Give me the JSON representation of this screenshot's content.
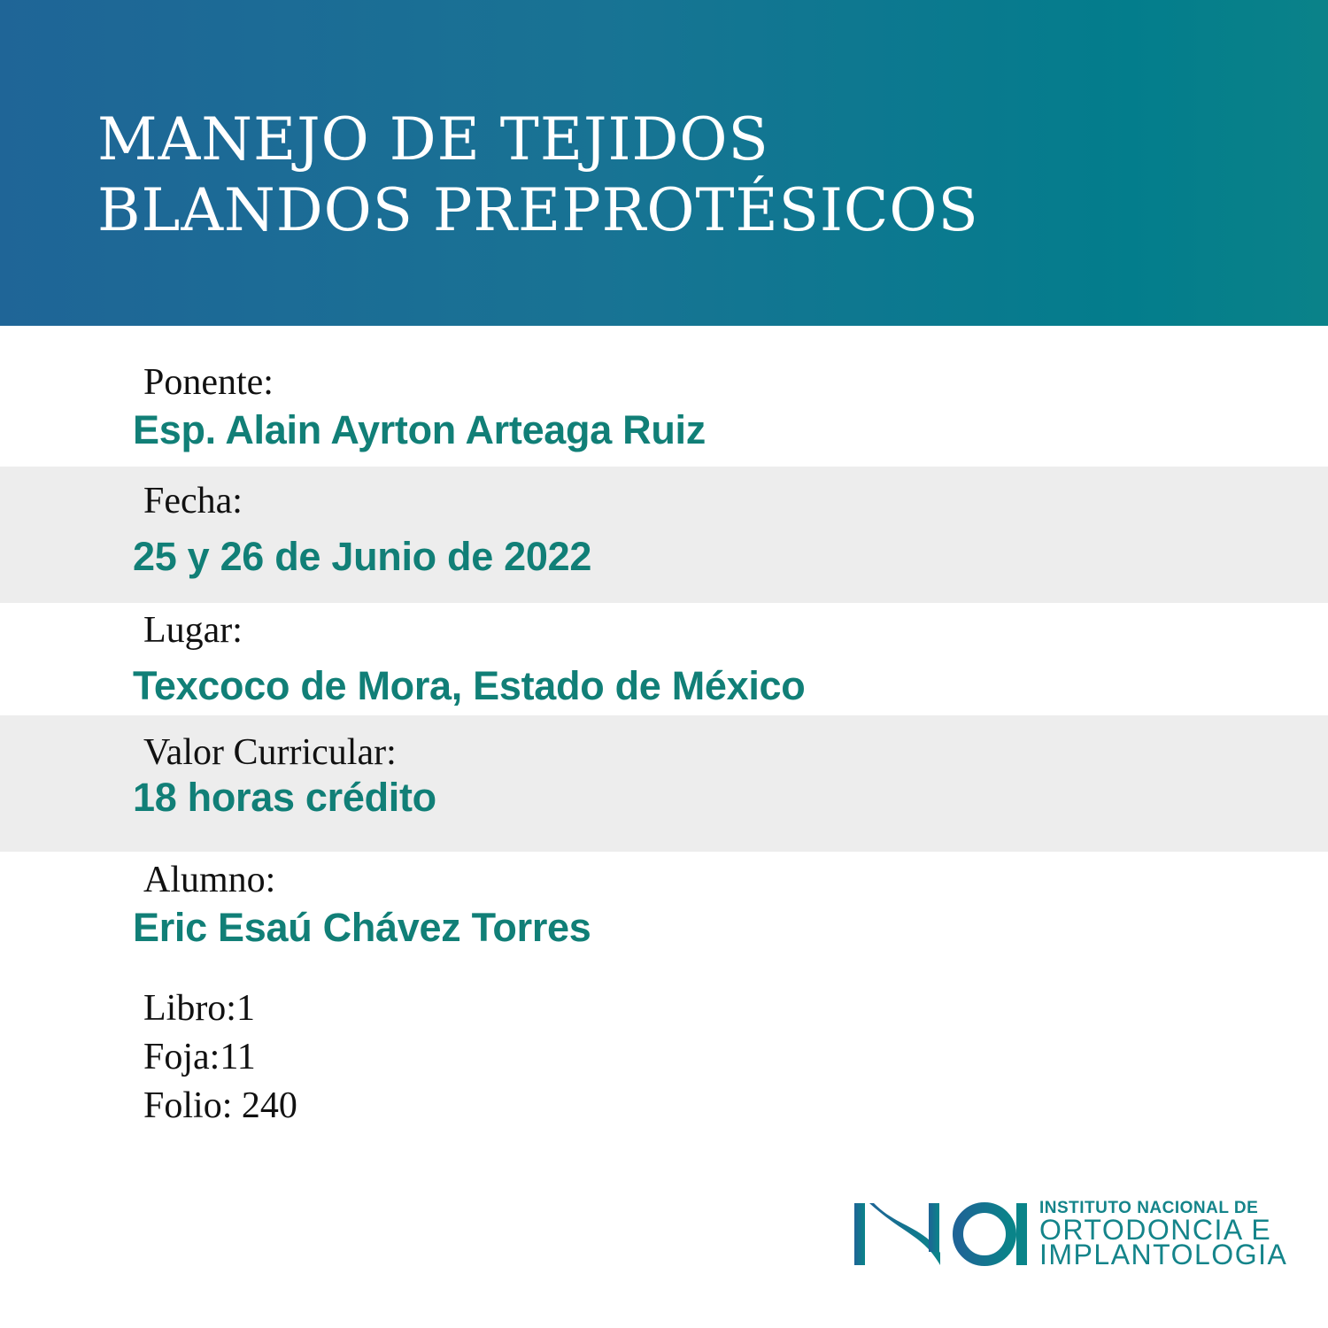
{
  "header": {
    "title_line1": "MANEJO DE TEJIDOS",
    "title_line2": "BLANDOS PREPROTÉSICOS",
    "gradient": [
      "#1f6597",
      "#0a8289"
    ]
  },
  "fields": [
    {
      "label": "Ponente:",
      "value": "Esp. Alain Ayrton Arteaga Ruiz"
    },
    {
      "label": "Fecha:",
      "value": "25 y 26 de Junio de 2022"
    },
    {
      "label": "Lugar:",
      "value": "Texcoco de Mora, Estado de México"
    },
    {
      "label": "Valor Curricular:",
      "value": "18 horas crédito"
    },
    {
      "label": "Alumno:",
      "value": "Eric Esaú Chávez Torres"
    }
  ],
  "registry": {
    "libro": "Libro:1",
    "foja": "Foja:11",
    "folio": "Folio: 240"
  },
  "logo": {
    "mark": "INOI",
    "line1": "INSTITUTO NACIONAL DE",
    "line2": "ORTODONCIA E",
    "line3": "IMPLANTOLOGIA"
  },
  "colors": {
    "accent": "#117f77",
    "band": "#ededed"
  }
}
